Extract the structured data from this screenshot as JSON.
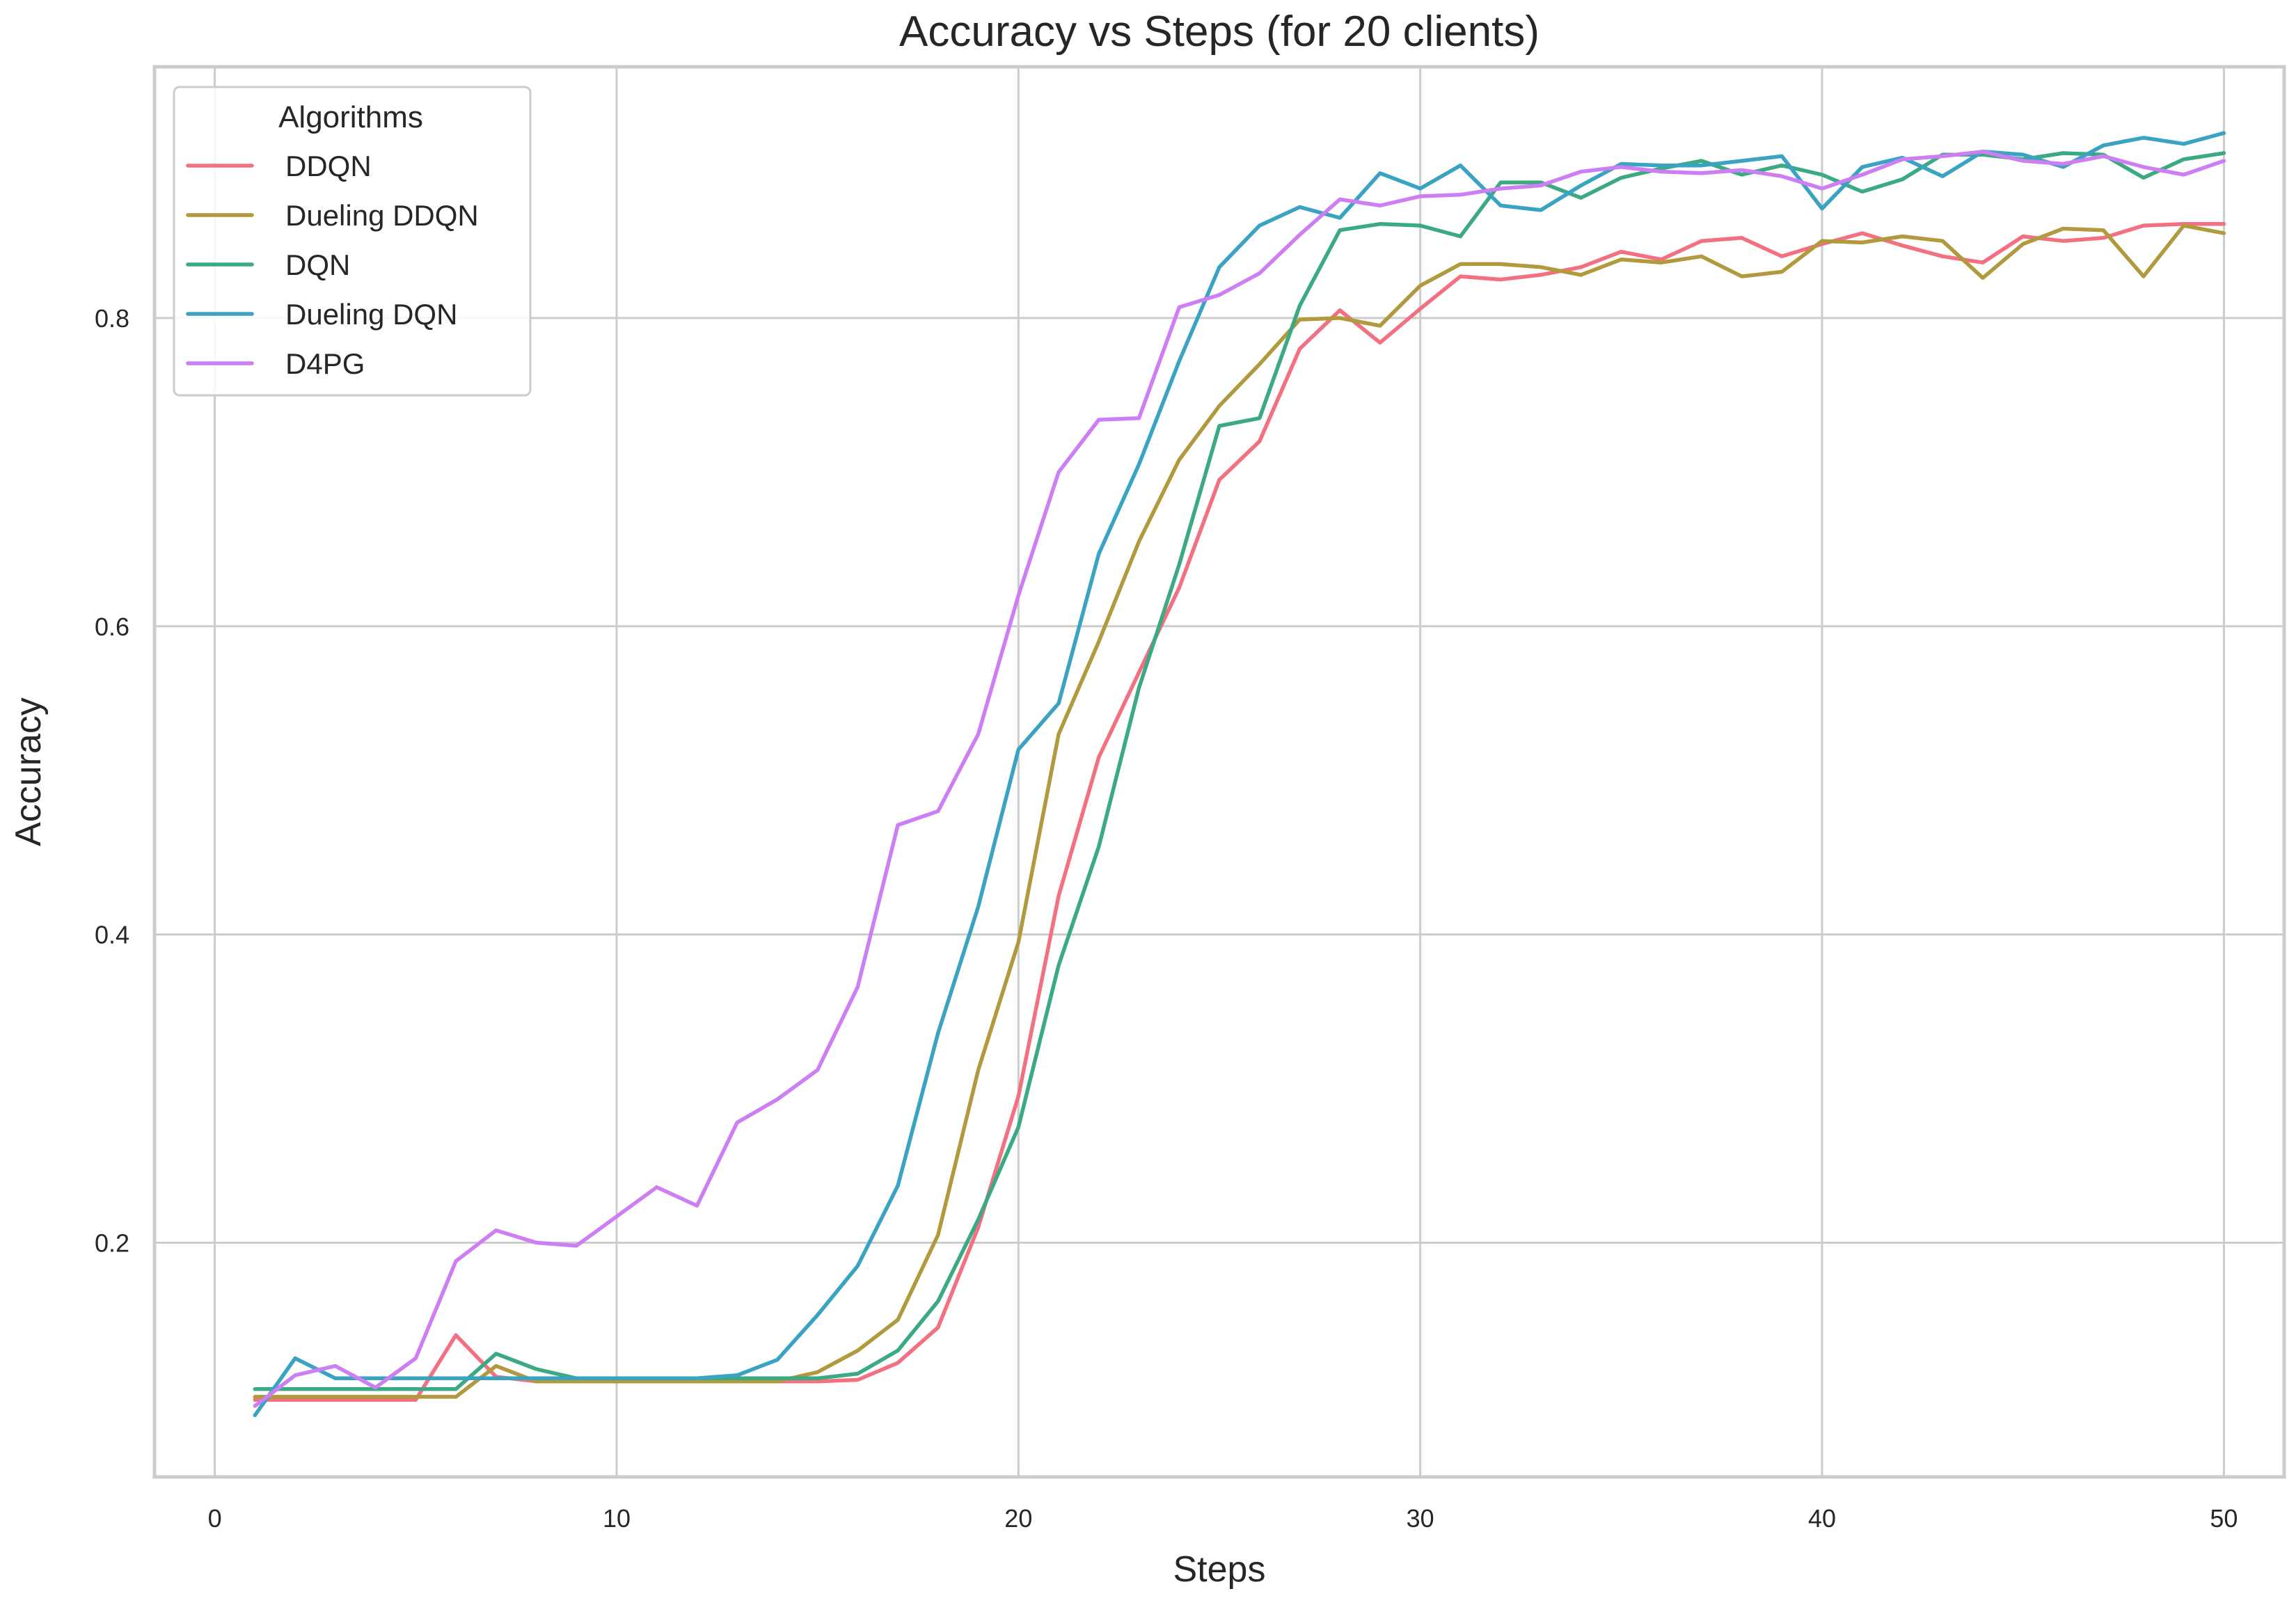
{
  "chart_data": {
    "type": "line",
    "title": "Accuracy vs Steps (for 20 clients)",
    "xlabel": "Steps",
    "ylabel": "Accuracy",
    "xlim": [
      -1.5,
      51.5
    ],
    "ylim": [
      0.048,
      0.963
    ],
    "xticks": [
      0,
      10,
      20,
      30,
      40,
      50
    ],
    "yticks": [
      0.2,
      0.4,
      0.6,
      0.8
    ],
    "xtick_labels": [
      "0",
      "10",
      "20",
      "30",
      "40",
      "50"
    ],
    "ytick_labels": [
      "0.2",
      "0.4",
      "0.6",
      "0.8"
    ],
    "grid": true,
    "legend": {
      "title": "Algorithms",
      "placement": "top-left"
    },
    "x": [
      1,
      2,
      3,
      4,
      5,
      6,
      7,
      8,
      9,
      10,
      11,
      12,
      13,
      14,
      15,
      16,
      17,
      18,
      19,
      20,
      21,
      22,
      23,
      24,
      25,
      26,
      27,
      28,
      29,
      30,
      31,
      32,
      33,
      34,
      35,
      36,
      37,
      38,
      39,
      40,
      41,
      42,
      43,
      44,
      45,
      46,
      47,
      48,
      49,
      50
    ],
    "series": [
      {
        "name": "DDQN",
        "color": "#f2707f",
        "values": [
          0.098,
          0.098,
          0.098,
          0.098,
          0.098,
          0.14,
          0.113,
          0.11,
          0.11,
          0.11,
          0.11,
          0.11,
          0.11,
          0.11,
          0.11,
          0.111,
          0.122,
          0.145,
          0.21,
          0.295,
          0.425,
          0.515,
          0.57,
          0.625,
          0.695,
          0.72,
          0.78,
          0.805,
          0.784,
          0.806,
          0.827,
          0.825,
          0.828,
          0.833,
          0.843,
          0.838,
          0.85,
          0.852,
          0.84,
          0.848,
          0.855,
          0.847,
          0.84,
          0.836,
          0.853,
          0.85,
          0.852,
          0.86,
          0.861,
          0.861
        ]
      },
      {
        "name": "Dueling DDQN",
        "color": "#b09a3d",
        "values": [
          0.1,
          0.1,
          0.1,
          0.1,
          0.1,
          0.1,
          0.12,
          0.11,
          0.11,
          0.11,
          0.11,
          0.11,
          0.11,
          0.11,
          0.116,
          0.13,
          0.15,
          0.205,
          0.312,
          0.395,
          0.53,
          0.59,
          0.655,
          0.708,
          0.743,
          0.77,
          0.799,
          0.8,
          0.795,
          0.821,
          0.835,
          0.835,
          0.833,
          0.828,
          0.838,
          0.836,
          0.84,
          0.827,
          0.83,
          0.85,
          0.849,
          0.853,
          0.85,
          0.826,
          0.848,
          0.858,
          0.857,
          0.827,
          0.86,
          0.855
        ]
      },
      {
        "name": "DQN",
        "color": "#3ba981",
        "values": [
          0.105,
          0.105,
          0.105,
          0.105,
          0.105,
          0.105,
          0.128,
          0.118,
          0.112,
          0.112,
          0.112,
          0.112,
          0.112,
          0.112,
          0.112,
          0.115,
          0.13,
          0.162,
          0.215,
          0.275,
          0.38,
          0.457,
          0.56,
          0.64,
          0.73,
          0.735,
          0.808,
          0.857,
          0.861,
          0.86,
          0.853,
          0.888,
          0.888,
          0.878,
          0.891,
          0.897,
          0.902,
          0.893,
          0.899,
          0.893,
          0.882,
          0.89,
          0.906,
          0.906,
          0.903,
          0.907,
          0.906,
          0.891,
          0.903,
          0.907
        ]
      },
      {
        "name": "Dueling DQN",
        "color": "#3aa3c1",
        "values": [
          0.088,
          0.125,
          0.112,
          0.112,
          0.112,
          0.112,
          0.112,
          0.112,
          0.112,
          0.112,
          0.112,
          0.112,
          0.114,
          0.124,
          0.153,
          0.185,
          0.237,
          0.336,
          0.418,
          0.52,
          0.55,
          0.647,
          0.705,
          0.772,
          0.833,
          0.86,
          0.872,
          0.865,
          0.894,
          0.884,
          0.899,
          0.873,
          0.87,
          0.886,
          0.9,
          0.899,
          0.899,
          0.902,
          0.905,
          0.871,
          0.898,
          0.904,
          0.892,
          0.908,
          0.906,
          0.898,
          0.912,
          0.917,
          0.913,
          0.92
        ]
      },
      {
        "name": "D4PG",
        "color": "#cc7ef2",
        "values": [
          0.094,
          0.114,
          0.12,
          0.106,
          0.125,
          0.188,
          0.208,
          0.2,
          0.198,
          0.217,
          0.236,
          0.224,
          0.278,
          0.293,
          0.312,
          0.366,
          0.471,
          0.48,
          0.53,
          0.62,
          0.7,
          0.734,
          0.735,
          0.807,
          0.815,
          0.829,
          0.854,
          0.877,
          0.873,
          0.879,
          0.88,
          0.884,
          0.886,
          0.895,
          0.898,
          0.895,
          0.894,
          0.896,
          0.892,
          0.884,
          0.893,
          0.903,
          0.905,
          0.908,
          0.902,
          0.9,
          0.905,
          0.898,
          0.893,
          0.902
        ]
      }
    ]
  }
}
